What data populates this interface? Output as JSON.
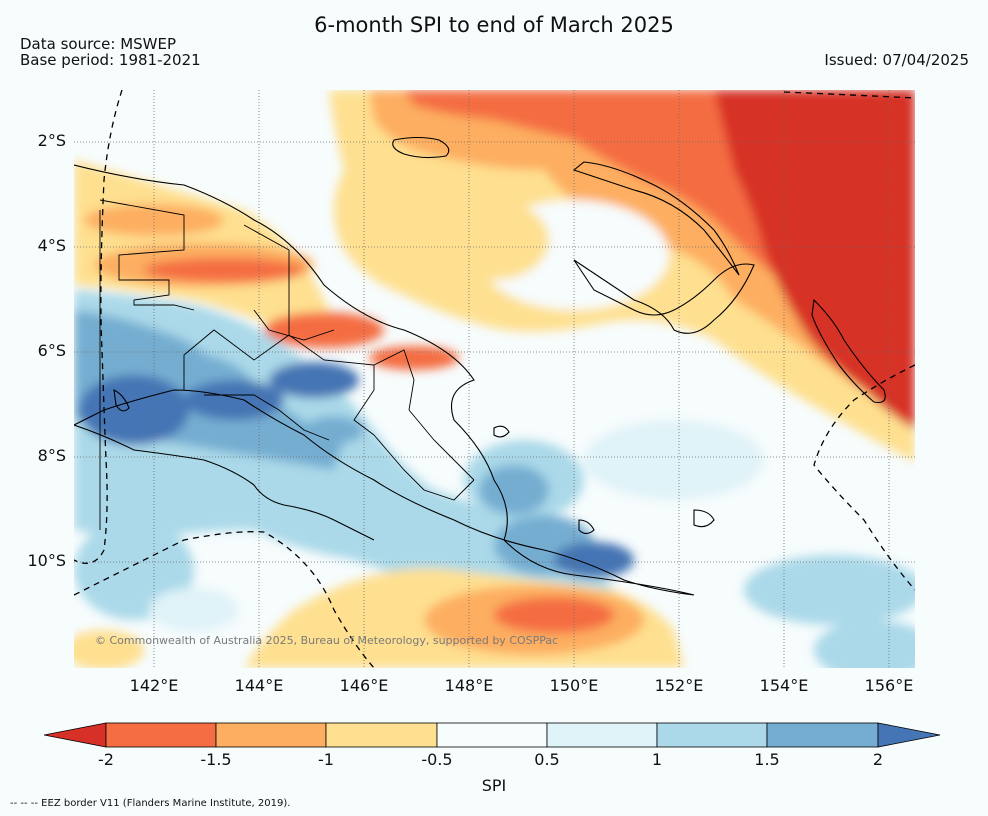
{
  "header": {
    "title": "6-month SPI to end of March 2025",
    "data_source": "Data source: MSWEP",
    "base_period": "Base period: 1981-2021",
    "issued": "Issued: 07/04/2025"
  },
  "map": {
    "region": "Papua New Guinea",
    "lat_ticks": [
      "2°S",
      "4°S",
      "6°S",
      "8°S",
      "10°S"
    ],
    "lon_ticks": [
      "142°E",
      "144°E",
      "146°E",
      "148°E",
      "150°E",
      "152°E",
      "154°E",
      "156°E"
    ],
    "copyright": "© Commonwealth of Australia 2025, Bureau of Meteorology, supported by COSPPac",
    "overlays": [
      "coastline",
      "province-borders",
      "eez-border",
      "graticule"
    ]
  },
  "colorbar": {
    "ticks": [
      "-2",
      "-1.5",
      "-1",
      "-0.5",
      "0.5",
      "1",
      "1.5",
      "2"
    ],
    "colors": [
      "#d73027",
      "#f46d43",
      "#fdae61",
      "#fee090",
      "#f7fcfd",
      "#e0f3f8",
      "#abd9e9",
      "#74add1",
      "#4575b4"
    ],
    "label": "SPI"
  },
  "footnote": "--  --  -- EEZ border V11 (Flanders Marine Institute, 2019)."
}
